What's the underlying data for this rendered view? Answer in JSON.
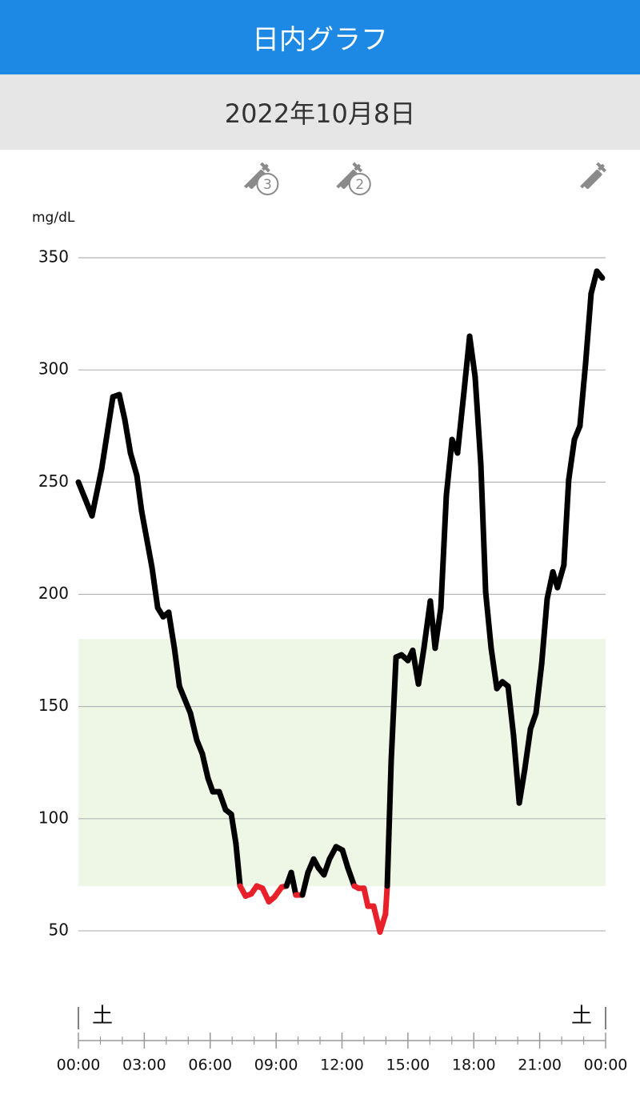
{
  "header": {
    "title": "日内グラフ"
  },
  "date": "2022年10月8日",
  "chart_data": {
    "type": "line",
    "y_unit": "mg/dL",
    "x": [
      0,
      0.62,
      1.06,
      1.57,
      1.86,
      2.11,
      2.37,
      2.66,
      2.88,
      3.35,
      3.61,
      3.86,
      4.11,
      4.37,
      4.6,
      5.1,
      5.39,
      5.64,
      5.9,
      6.12,
      6.41,
      6.7,
      6.96,
      7.17,
      7.36,
      7.61,
      7.87,
      8.12,
      8.38,
      8.67,
      8.92,
      9.25,
      9.47,
      9.69,
      9.9,
      10.2,
      10.45,
      10.71,
      10.93,
      11.18,
      11.43,
      11.73,
      12.02,
      12.27,
      12.56,
      12.75,
      13.0,
      13.18,
      13.44,
      13.73,
      13.98,
      14.06,
      14.24,
      14.46,
      14.71,
      15.0,
      15.22,
      15.48,
      15.73,
      16.02,
      16.24,
      16.5,
      16.75,
      17.01,
      17.26,
      17.55,
      17.81,
      18.06,
      18.32,
      18.54,
      18.79,
      19.05,
      19.3,
      19.56,
      19.81,
      20.07,
      20.32,
      20.58,
      20.83,
      21.09,
      21.34,
      21.6,
      21.81,
      22.1,
      22.32,
      22.58,
      22.83,
      23.09,
      23.34,
      23.6,
      23.85
    ],
    "values": [
      250,
      235,
      256,
      288,
      289,
      278,
      263,
      253,
      237,
      212,
      194,
      190,
      192,
      176,
      159,
      147,
      135,
      129,
      118,
      112,
      112,
      104,
      102,
      89,
      70,
      65.5,
      66.5,
      70,
      69,
      63,
      65,
      69.5,
      70,
      76,
      66,
      66,
      76,
      82,
      78,
      75,
      82,
      87.5,
      86,
      78,
      70,
      69,
      69,
      61,
      61,
      49.5,
      57.5,
      70,
      126,
      172,
      173,
      170.5,
      175,
      160,
      176,
      197,
      176,
      194,
      244,
      269,
      263,
      290,
      315,
      297,
      258,
      201,
      176,
      158,
      161,
      159,
      137,
      107,
      122,
      140,
      147,
      169,
      198,
      210,
      203,
      213,
      251,
      269,
      275,
      303,
      334,
      344,
      341
    ],
    "color": "#000000",
    "low_color": "#e8202a",
    "target_range": [
      70,
      180
    ],
    "target_color": "#eef6e6",
    "ylim": [
      35,
      360
    ],
    "yticks": [
      50,
      100,
      150,
      200,
      250,
      300,
      350
    ],
    "grid": true,
    "xlim": [
      0,
      24
    ],
    "xticks": [
      {
        "value": 0,
        "label": "00:00"
      },
      {
        "value": 3,
        "label": "03:00"
      },
      {
        "value": 6,
        "label": "06:00"
      },
      {
        "value": 9,
        "label": "09:00"
      },
      {
        "value": 12,
        "label": "12:00"
      },
      {
        "value": 15,
        "label": "15:00"
      },
      {
        "value": 18,
        "label": "18:00"
      },
      {
        "value": 21,
        "label": "21:00"
      },
      {
        "value": 24,
        "label": "00:00"
      }
    ],
    "day_markers": [
      {
        "x": 0,
        "label": "土"
      },
      {
        "x": 24,
        "label": "土"
      }
    ],
    "events": [
      {
        "x": 8.1,
        "count": 3
      },
      {
        "x": 12.3,
        "count": 2
      },
      {
        "x": 23.4
      }
    ]
  }
}
